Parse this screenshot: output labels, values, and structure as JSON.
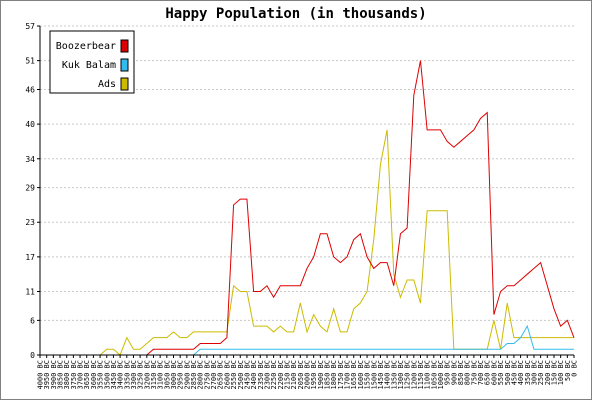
{
  "chart_data": {
    "type": "line",
    "title": "Happy Population (in thousands)",
    "xlabel": "",
    "ylabel": "",
    "ylim": [
      0,
      57
    ],
    "yticks": [
      0,
      6,
      11,
      17,
      23,
      29,
      34,
      40,
      46,
      51,
      57
    ],
    "grid": true,
    "legend_position": "top-left",
    "x": [
      "4000 BC",
      "3950 BC",
      "3900 BC",
      "3850 BC",
      "3800 BC",
      "3750 BC",
      "3700 BC",
      "3650 BC",
      "3600 BC",
      "3550 BC",
      "3500 BC",
      "3450 BC",
      "3400 BC",
      "3350 BC",
      "3300 BC",
      "3250 BC",
      "3200 BC",
      "3150 BC",
      "3100 BC",
      "3050 BC",
      "3000 BC",
      "2950 BC",
      "2900 BC",
      "2850 BC",
      "2800 BC",
      "2750 BC",
      "2700 BC",
      "2650 BC",
      "2600 BC",
      "2550 BC",
      "2500 BC",
      "2450 BC",
      "2400 BC",
      "2350 BC",
      "2300 BC",
      "2250 BC",
      "2200 BC",
      "2150 BC",
      "2100 BC",
      "2050 BC",
      "2000 BC",
      "1950 BC",
      "1900 BC",
      "1850 BC",
      "1800 BC",
      "1750 BC",
      "1700 BC",
      "1650 BC",
      "1600 BC",
      "1550 BC",
      "1500 BC",
      "1450 BC",
      "1400 BC",
      "1350 BC",
      "1300 BC",
      "1250 BC",
      "1200 BC",
      "1150 BC",
      "1100 BC",
      "1050 BC",
      "1000 BC",
      "950 BC",
      "900 BC",
      "850 BC",
      "800 BC",
      "750 BC",
      "700 BC",
      "650 BC",
      "600 BC",
      "550 BC",
      "500 BC",
      "450 BC",
      "400 BC",
      "350 BC",
      "300 BC",
      "250 BC",
      "200 BC",
      "150 BC",
      "100 BC",
      "50 BC",
      "0 BC"
    ],
    "xtick_labels": [
      "4000 BC",
      "3950 BC",
      "3900 BC",
      "3850 BC",
      "3800 BC",
      "3750 BC",
      "3700 BC",
      "3650 BC",
      "3600 BC",
      "3550 BC",
      "3500 BC",
      "3450 BC",
      "3400 BC",
      "3350 BC",
      "3300 BC",
      "3250 BC",
      "3200 BC",
      "3150 BC",
      "3100 BC",
      "3050 BC",
      "3000 BC",
      "2950 BC",
      "2900 BC",
      "2850 BC",
      "2800 BC",
      "2750 BC",
      "2700 BC",
      "2650 BC",
      "2600 BC",
      "2550 BC",
      "2500 BC",
      "2450 BC",
      "2400 BC",
      "2350 BC",
      "2300 BC",
      "2250 BC",
      "2200 BC",
      "2150 BC",
      "2100 BC",
      "2050 BC",
      "2000 BC",
      "1950 BC",
      "1900 BC",
      "1850 BC",
      "1800 BC",
      "1750 BC",
      "1700 BC",
      "1650 BC",
      "1600 BC",
      "1550 BC",
      "1500 BC",
      "1450 BC",
      "1400 BC",
      "1350 BC",
      "1300 BC",
      "1250 BC",
      "1200 BC",
      "1150 BC",
      "1100 BC",
      "1050 BC",
      "1000 BC",
      "950 BC",
      "900 BC",
      "850 BC",
      "800 BC",
      "750 BC",
      "700 BC",
      "650 BC",
      "600 BC",
      "550 BC",
      "500 BC",
      "450 BC",
      "400 BC",
      "350 BC",
      "300 BC",
      "250 BC",
      "200 BC",
      "150 BC",
      "100 BC",
      "50 BC",
      "0 BC"
    ],
    "series": [
      {
        "name": "Boozerbear",
        "color": "#dd0000",
        "values": [
          0,
          0,
          0,
          0,
          0,
          0,
          0,
          0,
          0,
          0,
          0,
          0,
          0,
          0,
          0,
          0,
          0,
          1,
          1,
          1,
          1,
          1,
          1,
          1,
          2,
          2,
          2,
          2,
          3,
          26,
          27,
          27,
          11,
          11,
          12,
          10,
          12,
          12,
          12,
          12,
          15,
          17,
          21,
          21,
          17,
          16,
          17,
          20,
          21,
          17,
          15,
          16,
          16,
          12,
          21,
          22,
          45,
          51,
          39,
          39,
          39,
          37,
          36,
          37,
          38,
          39,
          41,
          42,
          7,
          11,
          12,
          12,
          13,
          14,
          15,
          16,
          12,
          8,
          5,
          6,
          3
        ]
      },
      {
        "name": "Kuk Balam",
        "color": "#33bbee",
        "values": [
          0,
          0,
          0,
          0,
          0,
          0,
          0,
          0,
          0,
          0,
          0,
          0,
          0,
          0,
          0,
          0,
          0,
          0,
          0,
          0,
          0,
          0,
          0,
          0,
          1,
          1,
          1,
          1,
          1,
          1,
          1,
          1,
          1,
          1,
          1,
          1,
          1,
          1,
          1,
          1,
          1,
          1,
          1,
          1,
          1,
          1,
          1,
          1,
          1,
          1,
          1,
          1,
          1,
          1,
          1,
          1,
          1,
          1,
          1,
          1,
          1,
          1,
          1,
          1,
          1,
          1,
          1,
          1,
          1,
          1,
          2,
          2,
          3,
          5,
          1,
          1,
          1,
          1,
          1,
          1,
          1
        ]
      },
      {
        "name": "Ads",
        "color": "#ccbb00",
        "values": [
          0,
          0,
          0,
          0,
          0,
          0,
          0,
          0,
          0,
          0,
          1,
          1,
          0,
          3,
          1,
          1,
          2,
          3,
          3,
          3,
          4,
          3,
          3,
          4,
          4,
          4,
          4,
          4,
          4,
          12,
          11,
          11,
          5,
          5,
          5,
          4,
          5,
          4,
          4,
          9,
          4,
          7,
          5,
          4,
          8,
          4,
          4,
          8,
          9,
          11,
          20,
          33,
          39,
          14,
          10,
          13,
          13,
          9,
          25,
          25,
          25,
          25,
          1,
          1,
          1,
          1,
          1,
          1,
          6,
          1,
          9,
          3,
          3,
          3,
          3,
          3,
          3,
          3,
          3,
          3,
          3
        ]
      }
    ]
  }
}
